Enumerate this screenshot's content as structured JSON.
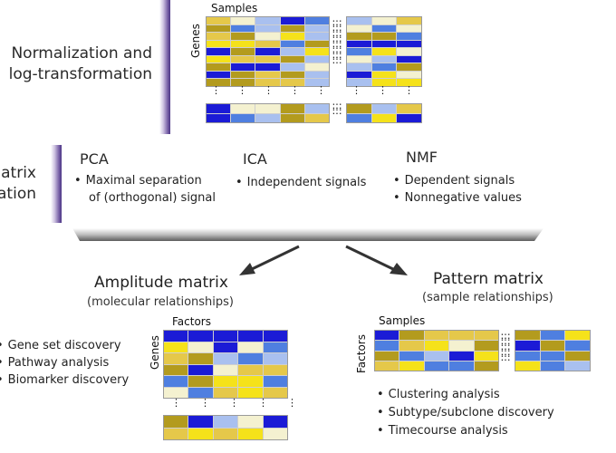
{
  "top": {
    "section_label_line1": "Normalization and",
    "section_label_line2": "log-transformation",
    "matrix_col_axis": "Samples",
    "matrix_row_axis": "Genes"
  },
  "middle": {
    "section_label_line1": "atrix",
    "section_label_line2": "ation",
    "methods": [
      {
        "name": "PCA",
        "bullets": [
          "Maximal separation",
          "of (orthogonal) signal"
        ]
      },
      {
        "name": "ICA",
        "bullets": [
          "Independent signals"
        ]
      },
      {
        "name": "NMF",
        "bullets": [
          "Dependent signals",
          "Nonnegative values"
        ]
      }
    ]
  },
  "amplitude": {
    "title": "Amplitude matrix",
    "subtitle": "(molecular relationships)",
    "col_axis": "Factors",
    "row_axis": "Genes",
    "uses": [
      "Gene set discovery",
      "Pathway analysis",
      "Biomarker discovery"
    ]
  },
  "pattern": {
    "title": "Pattern matrix",
    "subtitle": "(sample relationships)",
    "col_axis": "Samples",
    "row_axis": "Factors",
    "uses": [
      "Clustering analysis",
      "Subtype/subclone discovery",
      "Timecourse analysis"
    ]
  },
  "colors": {
    "blue_dark": "#1b1bd6",
    "blue_mid": "#4f7fe0",
    "blue_light": "#a9c0ef",
    "yellow_bright": "#f5e21a",
    "yellow_mid": "#e5c84a",
    "olive": "#b39b1e",
    "pale": "#f4f1d0"
  }
}
